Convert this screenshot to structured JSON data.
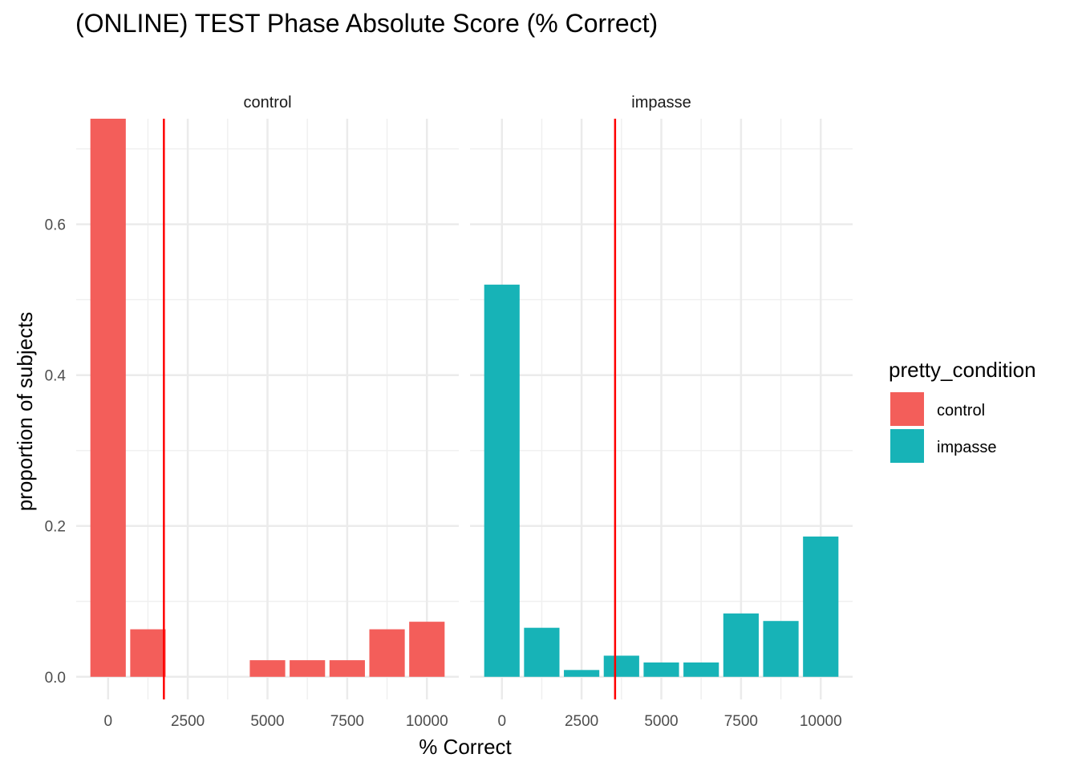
{
  "chart_data": {
    "type": "bar",
    "title": "(ONLINE) TEST Phase Absolute Score (% Correct)",
    "xlabel": "% Correct",
    "ylabel": "proportion of subjects",
    "xlim": [
      -1000,
      11000
    ],
    "ylim": [
      -0.03,
      0.74
    ],
    "x_ticks": [
      0,
      2500,
      5000,
      7500,
      10000
    ],
    "x_tick_labels": [
      "0",
      "2500",
      "5000",
      "7500",
      "10000"
    ],
    "y_ticks": [
      0.0,
      0.2,
      0.4,
      0.6
    ],
    "y_tick_labels": [
      "0.0",
      "0.2",
      "0.4",
      "0.6"
    ],
    "grid": true,
    "legend": {
      "title": "pretty_condition",
      "position": "right",
      "entries": [
        {
          "label": "control",
          "color": "#F35E5A"
        },
        {
          "label": "impasse",
          "color": "#17B3B7"
        }
      ]
    },
    "bin_width": 1111,
    "facets": [
      {
        "name": "control",
        "color": "#F35E5A",
        "vline_x": 1750,
        "bars": [
          {
            "x": 0,
            "y": 0.74
          },
          {
            "x": 1250,
            "y": 0.063
          },
          {
            "x": 5000,
            "y": 0.022
          },
          {
            "x": 6250,
            "y": 0.022
          },
          {
            "x": 7500,
            "y": 0.022
          },
          {
            "x": 8750,
            "y": 0.063
          },
          {
            "x": 10000,
            "y": 0.073
          }
        ]
      },
      {
        "name": "impasse",
        "color": "#17B3B7",
        "vline_x": 3550,
        "bars": [
          {
            "x": 0,
            "y": 0.52
          },
          {
            "x": 1250,
            "y": 0.065
          },
          {
            "x": 2500,
            "y": 0.009
          },
          {
            "x": 3750,
            "y": 0.028
          },
          {
            "x": 5000,
            "y": 0.019
          },
          {
            "x": 6250,
            "y": 0.019
          },
          {
            "x": 7500,
            "y": 0.084
          },
          {
            "x": 8750,
            "y": 0.074
          },
          {
            "x": 10000,
            "y": 0.186
          }
        ]
      }
    ],
    "vline_color": "#FF0000"
  }
}
